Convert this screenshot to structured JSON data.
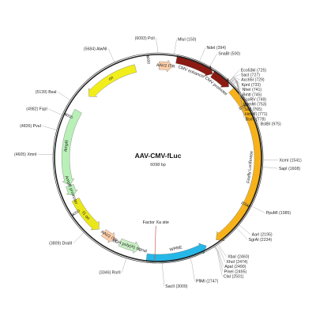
{
  "plasmid": {
    "name": "AAV-CMV-fLuc",
    "size_label": "6098 bp",
    "length": 6098
  },
  "colors": {
    "backbone": "#222222",
    "ori": "#f2ee1c",
    "AmpR": "#b9f0b7",
    "f1_ori": "#e9e71a",
    "ITR": "#ffcfaa",
    "cmv_promoter": "#8b1a12",
    "luciferase": "#f7b21a",
    "wpre": "#25b7e7",
    "polyA": "#c9f0c4",
    "marker": "#c04a3a"
  },
  "ticks": [
    {
      "label": "1000",
      "pos": 1000
    },
    {
      "label": "2000",
      "pos": 2000
    },
    {
      "label": "4000",
      "pos": 4000
    },
    {
      "label": "5000",
      "pos": 5000
    },
    {
      "label": "6000",
      "pos": 6000
    }
  ],
  "features": [
    {
      "name": "ori",
      "start": 5280,
      "end": 5860,
      "strand": -1,
      "color": "ori",
      "inner": true
    },
    {
      "name": "AAV2 ITR",
      "start": 10,
      "end": 150,
      "strand": 1,
      "color": "ITR",
      "inner": true
    },
    {
      "name": "CMV enhancer",
      "start": 180,
      "end": 560,
      "strand": 1,
      "color": "cmv_promoter",
      "inner": false
    },
    {
      "name": "CMV promoter",
      "start": 560,
      "end": 760,
      "strand": 1,
      "color": "cmv_promoter",
      "inner": false
    },
    {
      "name": "Firefly Luciferase",
      "start": 800,
      "end": 2450,
      "strand": 1,
      "color": "luciferase",
      "inner": false
    },
    {
      "name": "WPRE",
      "start": 2560,
      "end": 3160,
      "strand": -1,
      "color": "wpre",
      "inner": false
    },
    {
      "name": "bGH poly(A) signal",
      "start": 3240,
      "end": 3460,
      "strand": -1,
      "color": "polyA",
      "inner": true
    },
    {
      "name": "AAV2 ITR",
      "start": 3520,
      "end": 3660,
      "strand": -1,
      "color": "ITR",
      "inner": true
    },
    {
      "name": "f1 ori",
      "start": 3720,
      "end": 4120,
      "strand": -1,
      "color": "f1_ori",
      "inner": true
    },
    {
      "name": "AmpR",
      "start": 4280,
      "end": 5090,
      "strand": -1,
      "color": "AmpR",
      "inner": true
    },
    {
      "name": "AmpR promoter",
      "start": 4170,
      "end": 4280,
      "strand": -1,
      "color": "AmpR",
      "inner": true
    }
  ],
  "inner_labels": [
    {
      "text": "ori",
      "pos": 5580
    },
    {
      "text": "AAV2 ITR",
      "pos": 80
    },
    {
      "text": "CMV enhancer",
      "pos": 360
    },
    {
      "text": "CMV promoter",
      "pos": 660
    },
    {
      "text": "Firefly Luciferase",
      "pos": 1620
    },
    {
      "text": "WPRE",
      "pos": 2860
    },
    {
      "text": "bGH poly(A) signal",
      "pos": 3350
    },
    {
      "text": "AAV2 ITR",
      "pos": 3590
    },
    {
      "text": "f1 ori",
      "pos": 3920
    },
    {
      "text": "AmpR",
      "pos": 4700
    },
    {
      "text": "AmpR promoter",
      "pos": 4230
    }
  ],
  "factor_xa": {
    "text": "Factor Xa site",
    "pos": 3080
  },
  "sites": [
    {
      "name": "PciI",
      "pos_label": "(6093)",
      "pos": 6093
    },
    {
      "name": "MluI",
      "pos_label": "(150)",
      "pos": 150
    },
    {
      "name": "NdeI",
      "pos_label": "(394)",
      "pos": 394
    },
    {
      "name": "SnaBI",
      "pos_label": "(500)",
      "pos": 500
    },
    {
      "name": "Eco53kI",
      "pos_label": "(725)",
      "pos": 725
    },
    {
      "name": "SacI",
      "pos_label": "(727)",
      "pos": 727
    },
    {
      "name": "Acc65I",
      "pos_label": "(729)",
      "pos": 729
    },
    {
      "name": "KpnI",
      "pos_label": "(733)",
      "pos": 733
    },
    {
      "name": "NheI",
      "pos_label": "(741)",
      "pos": 741
    },
    {
      "name": "BmtI",
      "pos_label": "(745)",
      "pos": 745
    },
    {
      "name": "EcoRV",
      "pos_label": "(749)",
      "pos": 749
    },
    {
      "name": "BamHI",
      "pos_label": "(753)",
      "pos": 753
    },
    {
      "name": "SalI",
      "pos_label": "(765)",
      "pos": 765
    },
    {
      "name": "HindIII",
      "pos_label": "(771)",
      "pos": 771
    },
    {
      "name": "BsmI",
      "pos_label": "(778)",
      "pos": 778
    },
    {
      "name": "BstBI",
      "pos_label": "(975)",
      "pos": 975
    },
    {
      "name": "XcmI",
      "pos_label": "(1541)",
      "pos": 1541
    },
    {
      "name": "SapI",
      "pos_label": "(1608)",
      "pos": 1608
    },
    {
      "name": "PpuMI",
      "pos_label": "(1985)",
      "pos": 1985
    },
    {
      "name": "AarI",
      "pos_label": "(2195)",
      "pos": 2195
    },
    {
      "name": "SgrAI",
      "pos_label": "(2234)",
      "pos": 2234
    },
    {
      "name": "XbaI",
      "pos_label": "(2460)",
      "pos": 2460
    },
    {
      "name": "XhoI",
      "pos_label": "(2474)",
      "pos": 2474
    },
    {
      "name": "ApaI",
      "pos_label": "(2490)",
      "pos": 2490
    },
    {
      "name": "PmeI",
      "pos_label": "(2495)",
      "pos": 2495
    },
    {
      "name": "ClaI",
      "pos_label": "(2501)",
      "pos": 2501
    },
    {
      "name": "PflMI",
      "pos_label": "(2747)",
      "pos": 2747
    },
    {
      "name": "SacII",
      "pos_label": "(3009)",
      "pos": 3009
    },
    {
      "name": "RsrII",
      "pos_label": "(3346)",
      "pos": 3346
    },
    {
      "name": "DraIII",
      "pos_label": "(3809)",
      "pos": 3809
    },
    {
      "name": "XmnI",
      "pos_label": "(4605)",
      "pos": 4605
    },
    {
      "name": "PvuI",
      "pos_label": "(4836)",
      "pos": 4836
    },
    {
      "name": "FspI",
      "pos_label": "(4982)",
      "pos": 4982
    },
    {
      "name": "BsaI",
      "pos_label": "(5139)",
      "pos": 5139
    },
    {
      "name": "AlwNI",
      "pos_label": "(5684)",
      "pos": 5684
    }
  ]
}
